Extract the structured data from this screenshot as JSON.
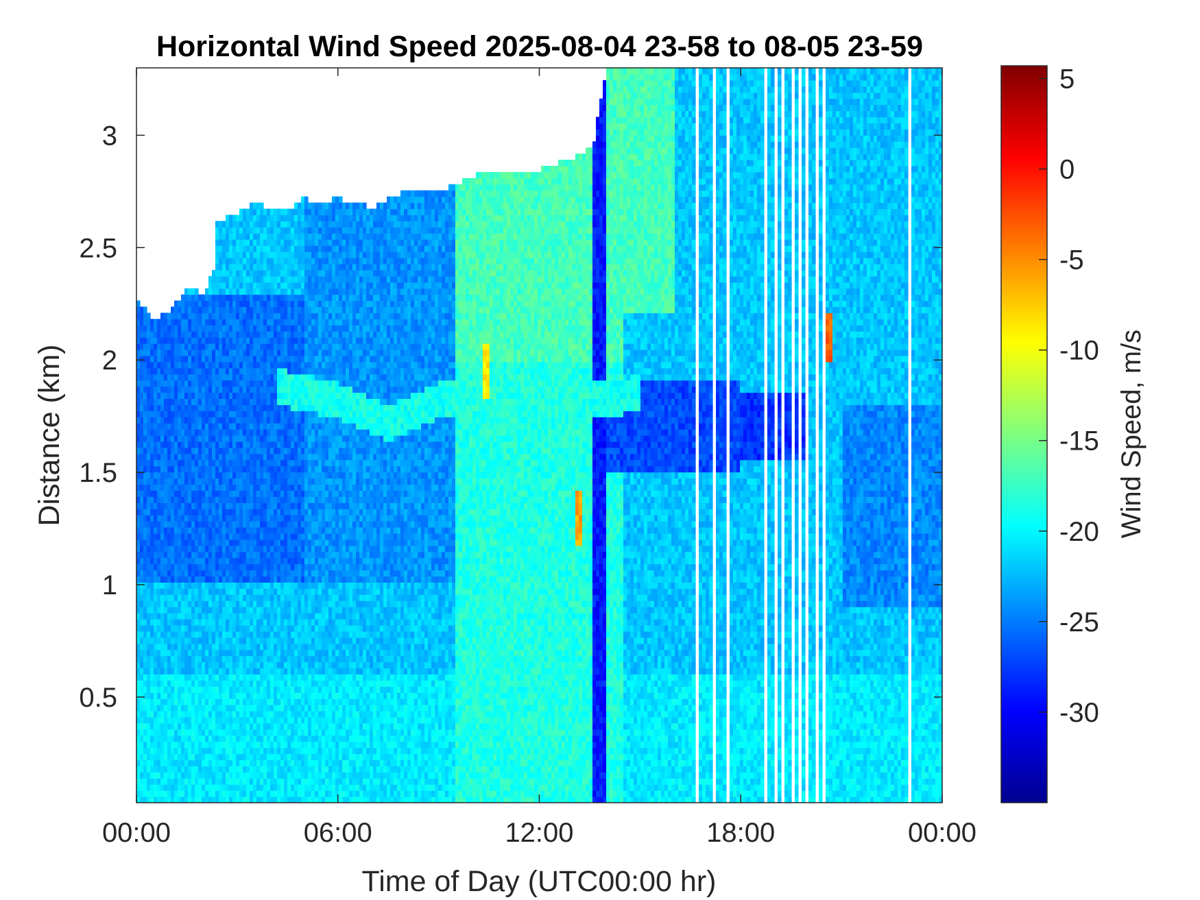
{
  "chart_data": {
    "type": "heatmap",
    "title": "Horizontal Wind Speed 2025-08-04 23-58 to 08-05 23-59",
    "xlabel": "Time of Day (UTC00:00 hr)",
    "ylabel": "Distance (km)",
    "x_unit": "hours",
    "xlim": [
      0,
      24
    ],
    "ylim": [
      0.03,
      3.3
    ],
    "x_ticks": [
      0,
      6,
      12,
      18,
      24
    ],
    "x_tick_labels": [
      "00:00",
      "06:00",
      "12:00",
      "18:00",
      "00:00"
    ],
    "y_ticks": [
      0.5,
      1,
      1.5,
      2,
      2.5,
      3
    ],
    "y_tick_labels": [
      "0.5",
      "1",
      "1.5",
      "2",
      "2.5",
      "3"
    ],
    "colorbar": {
      "label": "Wind Speed, m/s",
      "colormap": "jet",
      "clim": [
        -35,
        5.7
      ],
      "ticks": [
        5,
        0,
        -5,
        -10,
        -15,
        -20,
        -25,
        -30
      ],
      "tick_labels": [
        "5",
        "0",
        "-5",
        "-10",
        "-15",
        "-20",
        "-25",
        "-30"
      ]
    },
    "data_top_km": [
      [
        0.0,
        2.28
      ],
      [
        0.5,
        2.18
      ],
      [
        1.0,
        2.22
      ],
      [
        1.5,
        2.32
      ],
      [
        2.0,
        2.3
      ],
      [
        2.3,
        2.4
      ],
      [
        2.4,
        2.62
      ],
      [
        3.0,
        2.65
      ],
      [
        3.5,
        2.7
      ],
      [
        4.0,
        2.68
      ],
      [
        4.5,
        2.66
      ],
      [
        5.0,
        2.72
      ],
      [
        5.5,
        2.7
      ],
      [
        6.0,
        2.72
      ],
      [
        7.0,
        2.68
      ],
      [
        8.0,
        2.75
      ],
      [
        9.0,
        2.75
      ],
      [
        10.0,
        2.82
      ],
      [
        11.0,
        2.85
      ],
      [
        12.0,
        2.85
      ],
      [
        13.0,
        2.9
      ],
      [
        13.6,
        2.95
      ],
      [
        14.0,
        3.3
      ],
      [
        24.0,
        3.3
      ]
    ],
    "missing_time_bands_hr": [
      [
        16.65,
        16.75
      ],
      [
        17.2,
        17.28
      ],
      [
        17.6,
        17.7
      ],
      [
        18.65,
        18.75
      ],
      [
        18.95,
        19.05
      ],
      [
        19.25,
        19.35
      ],
      [
        19.5,
        19.6
      ],
      [
        19.7,
        19.8
      ],
      [
        19.95,
        20.05
      ],
      [
        20.2,
        20.3
      ],
      [
        20.45,
        20.55
      ],
      [
        23.0,
        23.05
      ]
    ],
    "features": [
      {
        "kind": "jet_layer",
        "description": "lighter band",
        "points_hr_km": [
          [
            4.2,
            1.88
          ],
          [
            6.0,
            1.82
          ],
          [
            7.5,
            1.72
          ],
          [
            9.0,
            1.82
          ],
          [
            12.0,
            1.88
          ],
          [
            13.5,
            1.82
          ],
          [
            15.0,
            1.85
          ]
        ],
        "value": -19
      },
      {
        "kind": "weak_wind_region",
        "time_hr": [
          9.5,
          14.5
        ],
        "height_km": [
          0.03,
          2.8
        ],
        "value": -16
      },
      {
        "kind": "strong_wind_region",
        "time_hr": [
          0,
          5
        ],
        "height_km": [
          1.0,
          2.3
        ],
        "value": -26
      },
      {
        "kind": "hot_spot",
        "time_hr": 13.2,
        "height_km": 1.3,
        "value": -6
      },
      {
        "kind": "hot_spot",
        "time_hr": 20.6,
        "height_km": 2.1,
        "value": -3
      },
      {
        "kind": "hot_spot",
        "time_hr": 10.4,
        "height_km": 1.95,
        "value": -9
      }
    ]
  }
}
